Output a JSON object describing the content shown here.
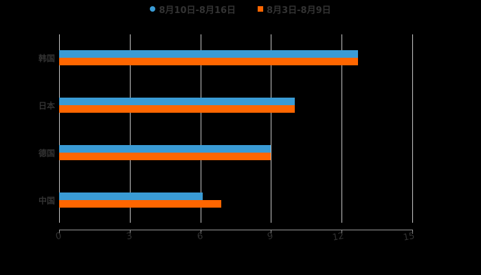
{
  "chart_data": {
    "type": "bar",
    "orientation": "horizontal",
    "title": "",
    "xlabel": "",
    "ylabel": "",
    "categories": [
      "韩国",
      "日本",
      "德国",
      "中国"
    ],
    "series": [
      {
        "name": "8月10日-8月16日",
        "color": "#3a9bd5",
        "values": [
          12.7,
          10,
          9,
          6.1
        ]
      },
      {
        "name": "8月3日-8月9日",
        "color": "#ff6600",
        "values": [
          12.7,
          10,
          9,
          6.9
        ]
      }
    ],
    "xlim": [
      0,
      15
    ],
    "xticks": [
      "0",
      "3",
      "6",
      "9",
      "12",
      "15"
    ],
    "grid": true,
    "legend_position": "top"
  },
  "legend": {
    "items": [
      {
        "label": "8月10日-8月16日",
        "color": "#3a9bd5",
        "marker": "circle"
      },
      {
        "label": "8月3日-8月9日",
        "color": "#ff6600",
        "marker": "square"
      }
    ]
  }
}
